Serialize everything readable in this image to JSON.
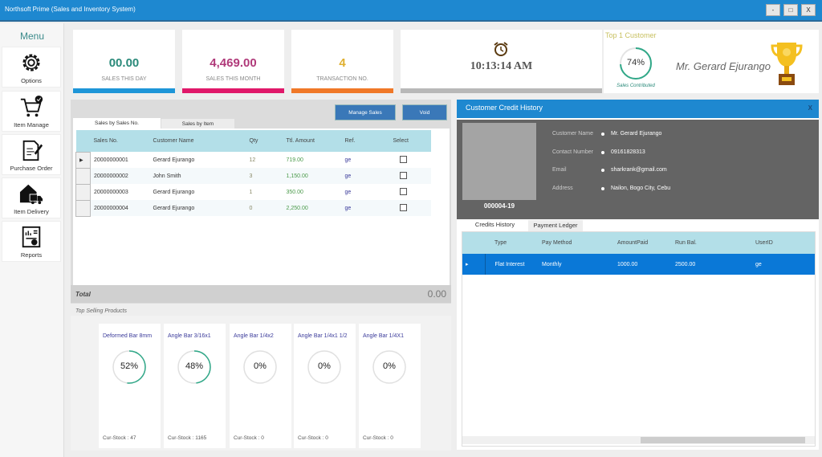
{
  "window": {
    "title": "Northsoft Prime (Sales and Inventory System)",
    "minimize": "-",
    "maximize": "□",
    "close": "X"
  },
  "sidebar": {
    "title": "Menu",
    "items": [
      {
        "label": "Options",
        "icon": "gear-icon"
      },
      {
        "label": "Item Manage",
        "icon": "cart-icon"
      },
      {
        "label": "Purchase Order",
        "icon": "document-pen-icon"
      },
      {
        "label": "Item Delivery",
        "icon": "house-truck-icon"
      },
      {
        "label": "Reports",
        "icon": "report-icon"
      }
    ]
  },
  "stats": [
    {
      "value": "00.00",
      "label": "SALES THIS DAY",
      "color": "#2a8a7a",
      "bar": "#1e96d8"
    },
    {
      "value": "4,469.00",
      "label": "SALES THIS MONTH",
      "color": "#b03a7a",
      "bar": "#e0186a"
    },
    {
      "value": "4",
      "label": "TRANSACTION NO.",
      "color": "#e0b030",
      "bar": "#f07828"
    }
  ],
  "clock": {
    "time": "10:13:14 AM"
  },
  "top_customer": {
    "title": "Top 1 Customer",
    "percent": 74,
    "percent_label": "74%",
    "caption": "Sales Contributed",
    "name": "Mr. Gerard Ejurango"
  },
  "sales": {
    "manage_label": "Manage Sales",
    "void_label": "Void",
    "tabs": [
      "Sales by Sales No.",
      "Sales by Item"
    ],
    "columns": [
      "Sales No.",
      "Customer Name",
      "Qty",
      "Ttl. Amount",
      "Ref.",
      "Select"
    ],
    "rows": [
      [
        "20000000001",
        "Gerard Ejurango",
        "12",
        "719.00",
        "ge"
      ],
      [
        "20000000002",
        "John Smith",
        "3",
        "1,150.00",
        "ge"
      ],
      [
        "20000000003",
        "Gerard Ejurango",
        "1",
        "350.00",
        "ge"
      ],
      [
        "20000000004",
        "Gerard Ejurango",
        "0",
        "2,250.00",
        "ge"
      ]
    ],
    "total_label": "Total",
    "total_value": "0.00"
  },
  "top_products": {
    "title": "Top Selling Products",
    "items": [
      {
        "name": "Deformed Bar 8mm",
        "percent": 52,
        "label": "52%",
        "stock": "Cur-Stock : 47"
      },
      {
        "name": "Angle Bar 3/16x1",
        "percent": 48,
        "label": "48%",
        "stock": "Cur-Stock : 1165"
      },
      {
        "name": "Angle Bar 1/4x2",
        "percent": 0,
        "label": "0%",
        "stock": "Cur-Stock : 0"
      },
      {
        "name": "Angle Bar 1/4x1 1/2",
        "percent": 0,
        "label": "0%",
        "stock": "Cur-Stock : 0"
      },
      {
        "name": "Angle Bar 1/4X1",
        "percent": 0,
        "label": "0%",
        "stock": "Cur-Stock : 0"
      }
    ]
  },
  "credit": {
    "title": "Customer Credit History",
    "close": "X",
    "customer_id": "000004-19",
    "fields": [
      {
        "label": "Customer Name",
        "value": "Mr. Gerard Ejurango"
      },
      {
        "label": "Contact Number",
        "value": "09161828313"
      },
      {
        "label": "Email",
        "value": "sharkrank@gmail.com"
      },
      {
        "label": "Address",
        "value": "Nailon, Bogo City, Cebu"
      }
    ],
    "tabs": [
      "Credits History",
      "Payment Ledger"
    ],
    "columns": [
      "Type",
      "Pay Method",
      "AmountPaid",
      "Run Bal.",
      "UserID"
    ],
    "rows": [
      [
        "Flat Interest",
        "Monthly",
        "1000.00",
        "2500.00",
        "ge"
      ]
    ]
  }
}
